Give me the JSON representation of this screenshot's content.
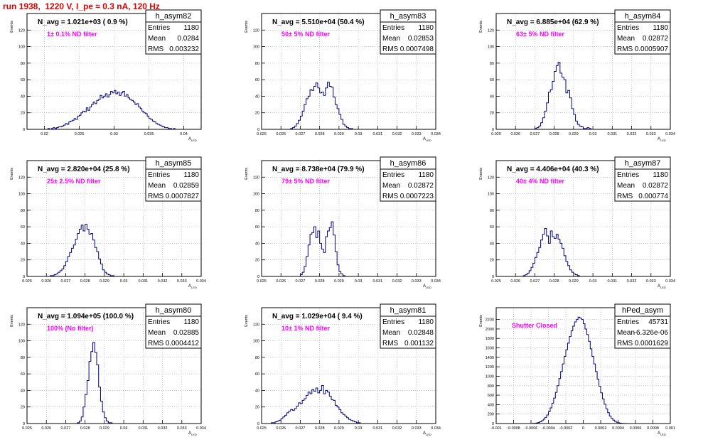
{
  "page": {
    "title": "run 1938,  1220 V, I_pe ≈ 0.3 nA, 120 Hz"
  },
  "colors": {
    "title": "#e00000",
    "histogram": "#000080",
    "annotation": "#ff00ff",
    "grid": "#aaaaaa",
    "frame": "#000000"
  },
  "chart_data": [
    {
      "type": "bar",
      "name": "h_asym82",
      "ylabel": "Events",
      "xlabel": "A_LED",
      "xlim": [
        0.0175,
        0.0425
      ],
      "ylim": [
        0,
        140
      ],
      "xticks": [
        0.02,
        0.025,
        0.03,
        0.035,
        0.04
      ],
      "xtick_labels": [
        "0.02",
        "0.025",
        "0.03",
        "0.035",
        "0.04"
      ],
      "yticks": [
        0,
        20,
        40,
        60,
        80,
        100,
        120
      ],
      "heading": "N_avg = 1.021e+03 ( 0.9 %)",
      "note": "1± 0.1% ND filter",
      "stats": [
        [
          "Entries",
          "1180"
        ],
        [
          "Mean",
          "0.0284"
        ],
        [
          "RMS",
          "0.003232"
        ]
      ],
      "bin_width": 0.00025,
      "x_start": 0.02,
      "values": [
        0,
        0,
        1,
        0,
        1,
        2,
        1,
        2,
        3,
        3,
        4,
        5,
        7,
        6,
        9,
        10,
        11,
        13,
        12,
        16,
        17,
        20,
        22,
        21,
        26,
        23,
        27,
        30,
        33,
        31,
        35,
        36,
        41,
        38,
        40,
        43,
        39,
        42,
        46,
        44,
        47,
        43,
        45,
        41,
        44,
        46,
        40,
        42,
        38,
        36,
        35,
        33,
        30,
        31,
        27,
        25,
        22,
        20,
        19,
        16,
        13,
        12,
        10,
        9,
        7,
        6,
        5,
        4,
        3,
        2,
        2,
        1,
        1,
        0,
        1,
        0
      ]
    },
    {
      "type": "bar",
      "name": "h_asym83",
      "ylabel": "Events",
      "xlabel": "A_LED",
      "xlim": [
        0.025,
        0.034
      ],
      "ylim": [
        0,
        140
      ],
      "xticks": [
        0.025,
        0.026,
        0.027,
        0.028,
        0.029,
        0.03,
        0.031,
        0.032,
        0.033,
        0.034
      ],
      "xtick_labels": [
        "0.025",
        "0.026",
        "0.027",
        "0.028",
        "0.029",
        "0.03",
        "0.031",
        "0.032",
        "0.033",
        "0.034"
      ],
      "yticks": [
        0,
        20,
        40,
        60,
        80,
        100,
        120
      ],
      "heading": "N_avg = 5.510e+04 (50.4 %)",
      "note": "50± 5% ND filter",
      "stats": [
        [
          "Entries",
          "1180"
        ],
        [
          "Mean",
          "0.02853"
        ],
        [
          "RMS",
          "0.0007498"
        ]
      ],
      "bin_width": 0.0001,
      "x_start": 0.0265,
      "values": [
        1,
        2,
        4,
        7,
        11,
        16,
        22,
        30,
        37,
        40,
        48,
        47,
        52,
        56,
        50,
        44,
        45,
        41,
        50,
        57,
        52,
        51,
        39,
        30,
        25,
        18,
        12,
        6,
        4,
        2,
        1,
        1
      ]
    },
    {
      "type": "bar",
      "name": "h_asym84",
      "ylabel": "Events",
      "xlabel": "A_LED",
      "xlim": [
        0.025,
        0.034
      ],
      "ylim": [
        0,
        140
      ],
      "xticks": [
        0.025,
        0.026,
        0.027,
        0.028,
        0.029,
        0.03,
        0.031,
        0.032,
        0.033,
        0.034
      ],
      "xtick_labels": [
        "0.025",
        "0.026",
        "0.027",
        "0.028",
        "0.029",
        "0.03",
        "0.031",
        "0.032",
        "0.033",
        "0.034"
      ],
      "yticks": [
        0,
        20,
        40,
        60,
        80,
        100,
        120
      ],
      "heading": "N_avg = 6.885e+04 (62.9 %)",
      "note": "63± 5% ND filter",
      "stats": [
        [
          "Entries",
          "1180"
        ],
        [
          "Mean",
          "0.02872"
        ],
        [
          "RMS",
          "0.0005907"
        ]
      ],
      "bin_width": 0.0001,
      "x_start": 0.027,
      "values": [
        1,
        2,
        4,
        8,
        14,
        22,
        32,
        45,
        48,
        58,
        70,
        77,
        81,
        68,
        63,
        60,
        44,
        47,
        38,
        25,
        18,
        10,
        6,
        4,
        3,
        1,
        1,
        2,
        1
      ]
    },
    {
      "type": "bar",
      "name": "h_asym85",
      "ylabel": "Events",
      "xlabel": "A_LED",
      "xlim": [
        0.025,
        0.034
      ],
      "ylim": [
        0,
        140
      ],
      "xticks": [
        0.025,
        0.026,
        0.027,
        0.028,
        0.029,
        0.03,
        0.031,
        0.032,
        0.033,
        0.034
      ],
      "xtick_labels": [
        "0.025",
        "0.026",
        "0.027",
        "0.028",
        "0.029",
        "0.03",
        "0.031",
        "0.032",
        "0.033",
        "0.034"
      ],
      "yticks": [
        0,
        20,
        40,
        60,
        80,
        100,
        120
      ],
      "heading": "N_avg = 2.820e+04 (25.8 %)",
      "note": "25± 2.5% ND filter",
      "stats": [
        [
          "Entries",
          "1180"
        ],
        [
          "Mean",
          "0.02859"
        ],
        [
          "RMS",
          "0.0007827"
        ]
      ],
      "bin_width": 0.0001,
      "x_start": 0.0262,
      "values": [
        1,
        1,
        2,
        3,
        5,
        7,
        9,
        13,
        18,
        24,
        29,
        34,
        38,
        45,
        52,
        57,
        62,
        55,
        63,
        57,
        51,
        52,
        44,
        35,
        30,
        21,
        15,
        8,
        5,
        3,
        2,
        1,
        1
      ]
    },
    {
      "type": "bar",
      "name": "h_asym86",
      "ylabel": "Events",
      "xlabel": "A_LED",
      "xlim": [
        0.025,
        0.034
      ],
      "ylim": [
        0,
        140
      ],
      "xticks": [
        0.025,
        0.026,
        0.027,
        0.028,
        0.029,
        0.03,
        0.031,
        0.032,
        0.033,
        0.034
      ],
      "xtick_labels": [
        "0.025",
        "0.026",
        "0.027",
        "0.028",
        "0.029",
        "0.03",
        "0.031",
        "0.032",
        "0.033",
        "0.034"
      ],
      "yticks": [
        0,
        20,
        40,
        60,
        80,
        100,
        120
      ],
      "heading": "N_avg = 8.738e+04 (79.9 %)",
      "note": "79± 5% ND filter",
      "stats": [
        [
          "Entries",
          "1180"
        ],
        [
          "Mean",
          "0.02872"
        ],
        [
          "RMS",
          "0.0007223"
        ]
      ],
      "bin_width": 0.0001,
      "x_start": 0.027,
      "values": [
        2,
        5,
        12,
        24,
        38,
        51,
        53,
        60,
        47,
        55,
        40,
        33,
        29,
        48,
        55,
        59,
        66,
        50,
        30,
        14,
        6,
        3,
        1
      ]
    },
    {
      "type": "bar",
      "name": "h_asym87",
      "ylabel": "Events",
      "xlabel": "A_LED",
      "xlim": [
        0.025,
        0.034
      ],
      "ylim": [
        0,
        140
      ],
      "xticks": [
        0.025,
        0.026,
        0.027,
        0.028,
        0.029,
        0.03,
        0.031,
        0.032,
        0.033,
        0.034
      ],
      "xtick_labels": [
        "0.025",
        "0.026",
        "0.027",
        "0.028",
        "0.029",
        "0.03",
        "0.031",
        "0.032",
        "0.033",
        "0.034"
      ],
      "yticks": [
        0,
        20,
        40,
        60,
        80,
        100,
        120
      ],
      "heading": "N_avg = 4.406e+04 (40.3 %)",
      "note": "40± 4% ND filter",
      "stats": [
        [
          "Entries",
          "1180"
        ],
        [
          "Mean",
          "0.02872"
        ],
        [
          "RMS",
          "0.000774"
        ]
      ],
      "bin_width": 0.0001,
      "x_start": 0.0264,
      "values": [
        1,
        2,
        4,
        7,
        11,
        16,
        23,
        29,
        35,
        44,
        51,
        58,
        49,
        40,
        55,
        48,
        46,
        51,
        45,
        40,
        34,
        25,
        18,
        13,
        8,
        5,
        3,
        2,
        1
      ]
    },
    {
      "type": "bar",
      "name": "h_asym80",
      "ylabel": "Events",
      "xlabel": "A_LED",
      "xlim": [
        0.025,
        0.034
      ],
      "ylim": [
        0,
        140
      ],
      "xticks": [
        0.025,
        0.026,
        0.027,
        0.028,
        0.029,
        0.03,
        0.031,
        0.032,
        0.033,
        0.034
      ],
      "xtick_labels": [
        "0.025",
        "0.026",
        "0.027",
        "0.028",
        "0.029",
        "0.03",
        "0.031",
        "0.032",
        "0.033",
        "0.034"
      ],
      "yticks": [
        0,
        20,
        40,
        60,
        80,
        100,
        120
      ],
      "heading": "N_avg = 1.094e+05 (100.0 %)",
      "note": "100% (No filter)",
      "stats": [
        [
          "Entries",
          "1180"
        ],
        [
          "Mean",
          "0.02885"
        ],
        [
          "RMS",
          "0.0004412"
        ]
      ],
      "bin_width": 0.0001,
      "x_start": 0.0276,
      "values": [
        1,
        3,
        8,
        20,
        35,
        52,
        75,
        87,
        98,
        86,
        71,
        44,
        27,
        14,
        7,
        3,
        1,
        1
      ]
    },
    {
      "type": "bar",
      "name": "h_asym81",
      "ylabel": "Events",
      "xlabel": "A_LED",
      "xlim": [
        0.025,
        0.034
      ],
      "ylim": [
        0,
        140
      ],
      "xticks": [
        0.025,
        0.026,
        0.027,
        0.028,
        0.029,
        0.03,
        0.031,
        0.032,
        0.033,
        0.034
      ],
      "xtick_labels": [
        "0.025",
        "0.026",
        "0.027",
        "0.028",
        "0.029",
        "0.03",
        "0.031",
        "0.032",
        "0.033",
        "0.034"
      ],
      "yticks": [
        0,
        20,
        40,
        60,
        80,
        100,
        120
      ],
      "heading": "N_avg = 1.029e+04 ( 9.4 %)",
      "note": "10± 1% ND filter",
      "stats": [
        [
          "Entries",
          "1180"
        ],
        [
          "Mean",
          "0.02848"
        ],
        [
          "RMS",
          "0.001132"
        ]
      ],
      "bin_width": 0.0001,
      "x_start": 0.0255,
      "values": [
        1,
        1,
        2,
        3,
        4,
        6,
        8,
        10,
        13,
        15,
        17,
        16,
        18,
        21,
        25,
        24,
        28,
        30,
        34,
        38,
        36,
        41,
        39,
        43,
        37,
        40,
        46,
        36,
        40,
        38,
        33,
        29,
        28,
        22,
        20,
        17,
        13,
        11,
        9,
        7,
        5,
        4,
        3,
        2,
        1,
        1
      ]
    },
    {
      "type": "bar",
      "name": "hPed_asym",
      "ylabel": "Events",
      "xlabel": "A_LED",
      "xlim": [
        -0.001,
        0.001
      ],
      "ylim": [
        0,
        2450
      ],
      "xticks": [
        -0.001,
        -0.0008,
        -0.0006,
        -0.0004,
        -0.0002,
        0,
        0.0002,
        0.0004,
        0.0006,
        0.0008,
        0.001
      ],
      "xtick_labels": [
        "-0.001",
        "-0.0008",
        "-0.0006",
        "-0.0004",
        "-0.0002",
        "0",
        "0.0002",
        "0.0004",
        "0.0006",
        "0.0008",
        "0.001"
      ],
      "yticks": [
        0,
        200,
        400,
        600,
        800,
        1000,
        1200,
        1400,
        1600,
        1800,
        2000,
        2200
      ],
      "heading": "",
      "note": "Shutter Closed",
      "stats": [
        [
          "Entries",
          "45731"
        ],
        [
          "Mean",
          "-6.326e-06"
        ],
        [
          "RMS",
          "0.0001629"
        ]
      ],
      "bin_width": 2e-05,
      "x_start": -0.00058,
      "values": [
        3,
        6,
        12,
        22,
        38,
        60,
        90,
        130,
        180,
        250,
        330,
        430,
        540,
        660,
        800,
        950,
        1100,
        1260,
        1420,
        1560,
        1700,
        1840,
        1960,
        2060,
        2150,
        2200,
        2250,
        2230,
        2200,
        2110,
        2000,
        1880,
        1740,
        1580,
        1420,
        1260,
        1100,
        940,
        790,
        650,
        520,
        410,
        310,
        230,
        160,
        110,
        72,
        45,
        27,
        15,
        8,
        4,
        2,
        1
      ]
    }
  ]
}
